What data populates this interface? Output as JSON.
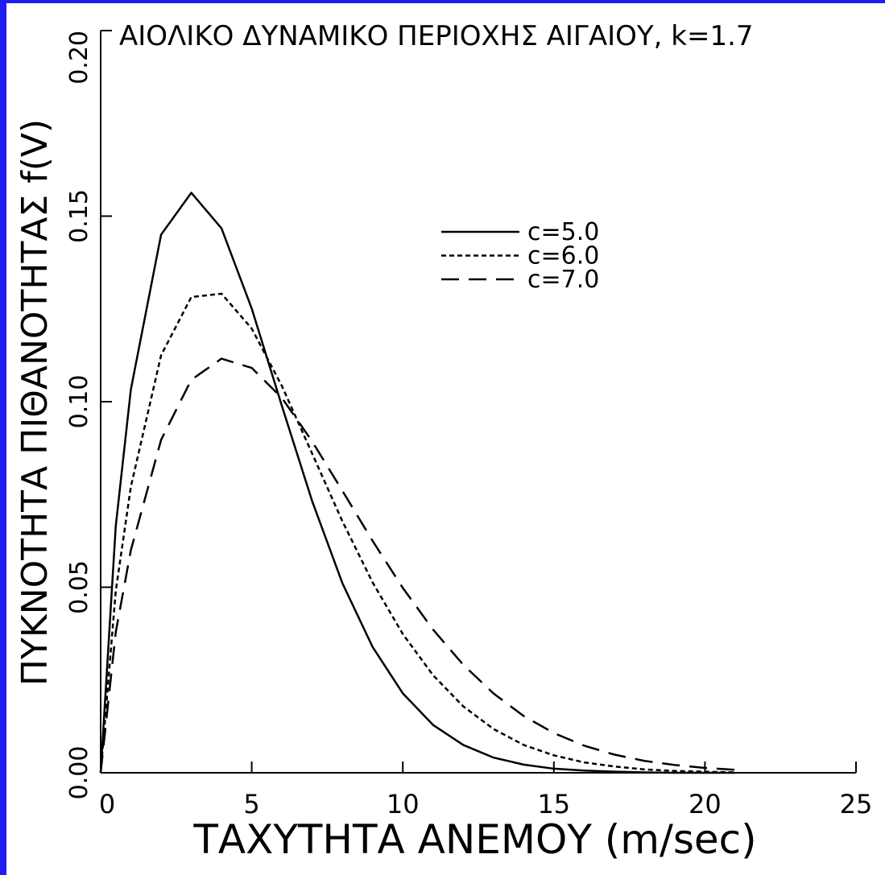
{
  "chart_data": {
    "type": "line",
    "title": "ΑΙΟΛΙΚΟ ΔΥΝΑΜΙΚΟ ΠΕΡΙΟΧΗΣ ΑΙΓΑΙΟΥ, k=1.7",
    "x_label": "ΤΑΧΥΤΗΤΑ ΑΝΕΜΟΥ  (m/sec)",
    "y_label": "ΠΥΚΝΟΤΗΤΑ ΠΙΘΑΝΟΤΗΤΑΣ  f(V)",
    "x": [
      0,
      0.5,
      1,
      2,
      3,
      4,
      5,
      6,
      7,
      8,
      9,
      10,
      11,
      12,
      13,
      14,
      15,
      16,
      17,
      18,
      19,
      20,
      21
    ],
    "series": [
      {
        "name": "c=5.0",
        "color": "#000000",
        "style": "solid",
        "values": [
          0,
          0.0665,
          0.1033,
          0.145,
          0.1563,
          0.1467,
          0.1251,
          0.0988,
          0.0732,
          0.0511,
          0.0339,
          0.0214,
          0.0129,
          0.0075,
          0.0041,
          0.0022,
          0.0011,
          0.0006,
          0.0003,
          0.0001,
          0,
          0,
          0
        ]
      },
      {
        "name": "c=6.0",
        "color": "#000000",
        "style": "dotted",
        "values": [
          0,
          0.049,
          0.0771,
          0.1125,
          0.1282,
          0.1291,
          0.1197,
          0.1042,
          0.086,
          0.0678,
          0.0513,
          0.0374,
          0.0263,
          0.0179,
          0.0118,
          0.0075,
          0.0047,
          0.0028,
          0.0017,
          0.0009,
          0.0005,
          0.0003,
          0.0001
        ]
      },
      {
        "name": "c=7.0",
        "color": "#000000",
        "style": "dashed",
        "values": [
          0,
          0.0379,
          0.06,
          0.0897,
          0.1059,
          0.1116,
          0.1091,
          0.101,
          0.0893,
          0.076,
          0.0625,
          0.0498,
          0.0386,
          0.0291,
          0.0214,
          0.0153,
          0.0107,
          0.0073,
          0.0049,
          0.0032,
          0.0021,
          0.0013,
          0.0008
        ]
      }
    ],
    "xlim": [
      0,
      25
    ],
    "xticks": [
      0,
      5,
      10,
      15,
      20,
      25
    ],
    "ylim": [
      0,
      0.2
    ],
    "yticks": [
      {
        "value": 0,
        "label": "0.00"
      },
      {
        "value": 0.05,
        "label": "0.05"
      },
      {
        "value": 0.1,
        "label": "0.10"
      },
      {
        "value": 0.15,
        "label": "0.15"
      },
      {
        "value": 0.2,
        "label": "0.20"
      }
    ],
    "grid": false,
    "legend": "upper-center"
  }
}
